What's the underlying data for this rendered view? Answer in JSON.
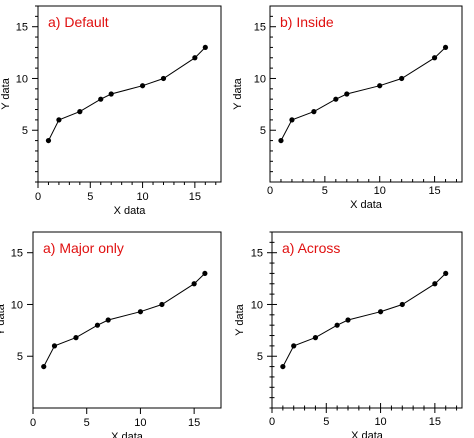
{
  "chart_data": [
    {
      "type": "line",
      "title": "a) Default",
      "title_color": "#e01010",
      "tick_style": "outside",
      "xlabel": "X data",
      "ylabel": "Y data",
      "xlim": [
        0,
        17.5
      ],
      "ylim": [
        0,
        17
      ],
      "xticks": [
        0,
        5,
        10,
        15
      ],
      "yticks": [
        5,
        10,
        15
      ],
      "grid": false,
      "x": [
        1,
        2,
        4,
        6,
        7,
        10,
        12,
        15,
        16
      ],
      "y": [
        4,
        6,
        6.8,
        8,
        8.5,
        9.3,
        10,
        12,
        13
      ]
    },
    {
      "type": "line",
      "title": "b) Inside",
      "title_color": "#e01010",
      "tick_style": "inside",
      "xlabel": "X data",
      "ylabel": "Y data",
      "xlim": [
        0,
        17.5
      ],
      "ylim": [
        0,
        17
      ],
      "xticks": [
        0,
        5,
        10,
        15
      ],
      "yticks": [
        5,
        10,
        15
      ],
      "grid": false,
      "x": [
        1,
        2,
        4,
        6,
        7,
        10,
        12,
        15,
        16
      ],
      "y": [
        4,
        6,
        6.8,
        8,
        8.5,
        9.3,
        10,
        12,
        13
      ]
    },
    {
      "type": "line",
      "title": "a) Major only",
      "title_color": "#e01010",
      "tick_style": "major-only",
      "xlabel": "X data",
      "ylabel": "Y data",
      "xlim": [
        0,
        17.5
      ],
      "ylim": [
        0,
        17
      ],
      "xticks": [
        0,
        5,
        10,
        15
      ],
      "yticks": [
        5,
        10,
        15
      ],
      "grid": false,
      "x": [
        1,
        2,
        4,
        6,
        7,
        10,
        12,
        15,
        16
      ],
      "y": [
        4,
        6,
        6.8,
        8,
        8.5,
        9.3,
        10,
        12,
        13
      ]
    },
    {
      "type": "line",
      "title": "a) Across",
      "title_color": "#e01010",
      "tick_style": "across",
      "xlabel": "X data",
      "ylabel": "Y data",
      "xlim": [
        0,
        17.5
      ],
      "ylim": [
        0,
        17
      ],
      "xticks": [
        0,
        5,
        10,
        15
      ],
      "yticks": [
        5,
        10,
        15
      ],
      "grid": false,
      "x": [
        1,
        2,
        4,
        6,
        7,
        10,
        12,
        15,
        16
      ],
      "y": [
        4,
        6,
        6.8,
        8,
        8.5,
        9.3,
        10,
        12,
        13
      ]
    }
  ]
}
